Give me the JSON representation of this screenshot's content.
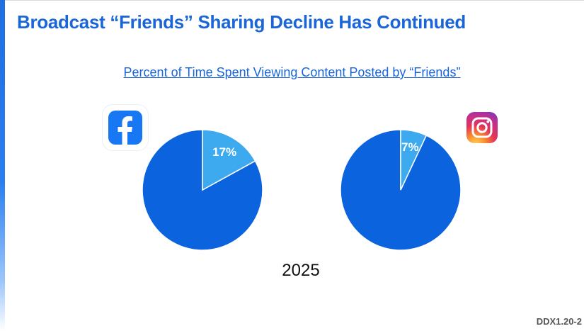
{
  "page": {
    "title": "Broadcast “Friends” Sharing Decline Has Continued",
    "footer_code": "DDX1.20-2"
  },
  "colors": {
    "accent": "#1a66d9",
    "pie_main": "#0b63de",
    "pie_slice": "#3daaf0"
  },
  "icons": {
    "left": "facebook-logo-icon",
    "right": "instagram-logo-icon"
  },
  "chart_data": {
    "type": "pie",
    "title": "Percent of Time Spent Viewing Content Posted by “Friends”",
    "xlabel": "2025",
    "charts": [
      {
        "platform_icon": "facebook-logo-icon",
        "value": 17,
        "label": "17%"
      },
      {
        "platform_icon": "instagram-logo-icon",
        "value": 7,
        "label": "7%"
      }
    ]
  }
}
